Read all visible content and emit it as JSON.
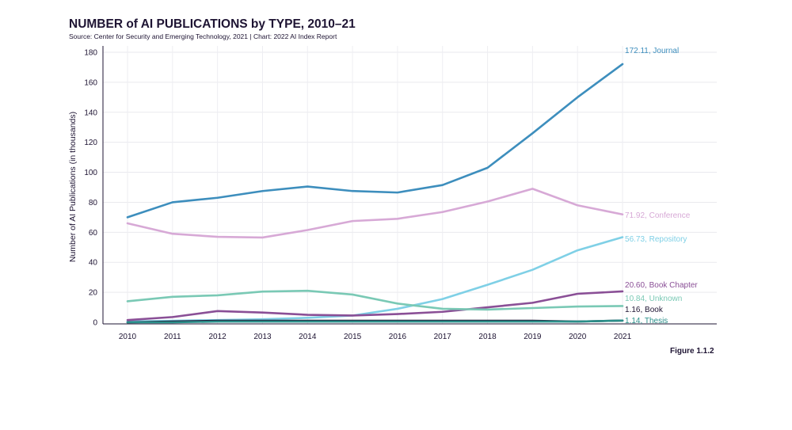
{
  "header": {
    "title": "NUMBER of AI PUBLICATIONS by TYPE, 2010–21",
    "subtitle": "Source: Center for Security and Emerging Technology, 2021 | Chart: 2022 AI Index Report",
    "figure_label": "Figure 1.1.2"
  },
  "chart_data": {
    "type": "line",
    "title": "NUMBER of AI PUBLICATIONS by TYPE, 2010–21",
    "xlabel": "",
    "ylabel": "Number of AI Publications (in thousands)",
    "x": [
      2010,
      2011,
      2012,
      2013,
      2014,
      2015,
      2016,
      2017,
      2018,
      2019,
      2020,
      2021
    ],
    "ylim": [
      0,
      180
    ],
    "yticks": [
      0,
      20,
      40,
      60,
      80,
      100,
      120,
      140,
      160,
      180
    ],
    "grid": true,
    "series": [
      {
        "name": "Journal",
        "color": "#3d8ebd",
        "end_label": "172.11, Journal",
        "values": [
          70,
          80,
          83,
          87.5,
          90.5,
          87.5,
          86.5,
          91.5,
          103,
          126,
          150,
          172.11
        ]
      },
      {
        "name": "Conference",
        "color": "#d7a9d6",
        "end_label": "71.92, Conference",
        "values": [
          66,
          59,
          57,
          56.5,
          61.5,
          67.5,
          69,
          73.5,
          80.5,
          89,
          78,
          71.92
        ]
      },
      {
        "name": "Repository",
        "color": "#7fd0e6",
        "end_label": "56.73, Repository",
        "values": [
          0.5,
          1,
          1.5,
          2,
          3,
          4.5,
          9,
          15.5,
          25,
          35,
          48,
          56.73
        ]
      },
      {
        "name": "Book Chapter",
        "color": "#8a4f96",
        "end_label": "20.60, Book Chapter",
        "values": [
          1.5,
          3.5,
          7.5,
          6.5,
          5,
          4.5,
          5.5,
          7,
          10,
          13,
          19,
          20.6
        ]
      },
      {
        "name": "Unknown",
        "color": "#7ac9b5",
        "end_label": "10.84, Unknown",
        "values": [
          14,
          17,
          18,
          20.5,
          21,
          18.5,
          12.5,
          9,
          8.5,
          9.5,
          10.5,
          10.84
        ]
      },
      {
        "name": "Book",
        "color": "#1e1433",
        "end_label": "1.16, Book",
        "values": [
          0,
          0.5,
          1,
          1,
          1,
          1,
          1,
          1,
          1,
          1,
          0.5,
          1.16
        ]
      },
      {
        "name": "Thesis",
        "color": "#2a8f8a",
        "end_label": "1.14, Thesis",
        "values": [
          0,
          0,
          0.5,
          0.5,
          0.5,
          0.5,
          0.5,
          0.5,
          0.5,
          0.5,
          0.5,
          1.14
        ]
      }
    ]
  }
}
